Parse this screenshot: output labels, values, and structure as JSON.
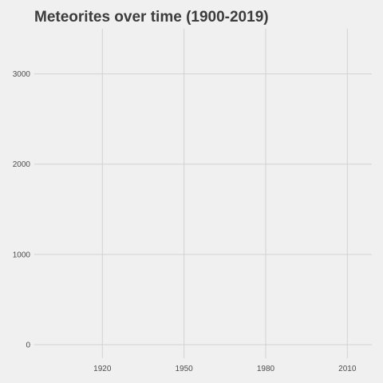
{
  "chart_data": {
    "type": "line",
    "title": "Meteorites over time (1900-2019)",
    "xlabel": "",
    "ylabel": "",
    "x_ticks": [
      1920,
      1950,
      1980,
      2010
    ],
    "y_ticks": [
      0,
      1000,
      2000,
      3000
    ],
    "xlim": [
      1895,
      2019
    ],
    "ylim": [
      -150,
      3500
    ],
    "grid": true,
    "series": [
      {
        "x": [],
        "y": []
      }
    ]
  }
}
